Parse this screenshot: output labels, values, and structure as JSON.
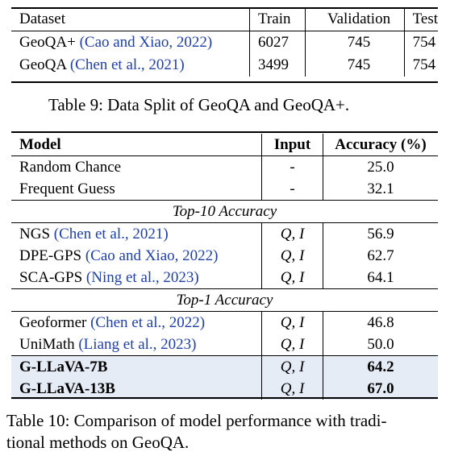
{
  "table9": {
    "headers": [
      "Dataset",
      "Train",
      "Validation",
      "Test"
    ],
    "rows": [
      {
        "name": "GeoQA+",
        "cite": "(Cao and Xiao, 2022)",
        "train": "6027",
        "validation": "745",
        "test": "754"
      },
      {
        "name": "GeoQA",
        "cite": "(Chen et al., 2021)",
        "train": "3499",
        "validation": "745",
        "test": "754"
      }
    ],
    "caption": "Table 9: Data Split of GeoQA and GeoQA+."
  },
  "table10": {
    "headers": [
      "Model",
      "Input",
      "Accuracy (%)"
    ],
    "baseline_rows": [
      {
        "model": "Random Chance",
        "input": "-",
        "accuracy": "25.0"
      },
      {
        "model": "Frequent Guess",
        "input": "-",
        "accuracy": "32.1"
      }
    ],
    "section_top10": "Top-10 Accuracy",
    "top10_rows": [
      {
        "model": "NGS",
        "cite": "(Chen et al., 2021)",
        "input": "Q, I",
        "accuracy": "56.9"
      },
      {
        "model": "DPE-GPS",
        "cite": "(Cao and Xiao, 2022)",
        "input": "Q, I",
        "accuracy": "62.7"
      },
      {
        "model": "SCA-GPS",
        "cite": "(Ning et al., 2023)",
        "input": "Q, I",
        "accuracy": "64.1"
      }
    ],
    "section_top1": "Top-1 Accuracy",
    "top1_rows": [
      {
        "model": "Geoformer",
        "cite": "(Chen et al., 2022)",
        "input": "Q, I",
        "accuracy": "46.8"
      },
      {
        "model": "UniMath",
        "cite": "(Liang et al., 2023)",
        "input": "Q, I",
        "accuracy": "50.0"
      }
    ],
    "highlight_rows": [
      {
        "model": "G-LLaVA-7B",
        "input": "Q, I",
        "accuracy": "64.2"
      },
      {
        "model": "G-LLaVA-13B",
        "input": "Q, I",
        "accuracy": "67.0"
      }
    ],
    "highlight_color": "#e5ecf6",
    "caption_line1": "Table 10: Comparison of model performance with tradi-",
    "caption_line2": "tional methods on GeoQA."
  },
  "citation_color": "#1f3fa8"
}
